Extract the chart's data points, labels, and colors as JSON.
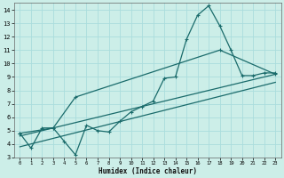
{
  "bg_color": "#cceee8",
  "grid_color": "#aadddd",
  "line_color": "#1a6b6b",
  "xlabel": "Humidex (Indice chaleur)",
  "xlim": [
    -0.5,
    23.5
  ],
  "ylim": [
    3,
    14.5
  ],
  "xticks": [
    0,
    1,
    2,
    3,
    4,
    5,
    6,
    7,
    8,
    9,
    10,
    11,
    12,
    13,
    14,
    15,
    16,
    17,
    18,
    19,
    20,
    21,
    22,
    23
  ],
  "yticks": [
    3,
    4,
    5,
    6,
    7,
    8,
    9,
    10,
    11,
    12,
    13,
    14
  ],
  "series1_x": [
    0,
    1,
    2,
    3,
    4,
    5,
    6,
    7,
    8,
    9,
    10,
    11,
    12,
    13,
    14,
    15,
    16,
    17,
    18,
    19,
    20,
    21,
    22,
    23
  ],
  "series1_y": [
    4.8,
    3.7,
    5.2,
    5.2,
    4.2,
    3.2,
    5.4,
    5.0,
    4.9,
    5.7,
    6.4,
    6.8,
    7.2,
    8.9,
    9.0,
    11.8,
    13.6,
    14.3,
    12.8,
    11.0,
    9.1,
    9.1,
    9.3,
    9.3
  ],
  "series2_x": [
    0,
    3,
    5,
    18,
    23
  ],
  "series2_y": [
    4.8,
    5.2,
    7.5,
    11.0,
    9.2
  ],
  "series3_x": [
    0,
    23
  ],
  "series3_y": [
    4.6,
    9.2
  ],
  "series4_x": [
    0,
    23
  ],
  "series4_y": [
    3.8,
    8.6
  ]
}
